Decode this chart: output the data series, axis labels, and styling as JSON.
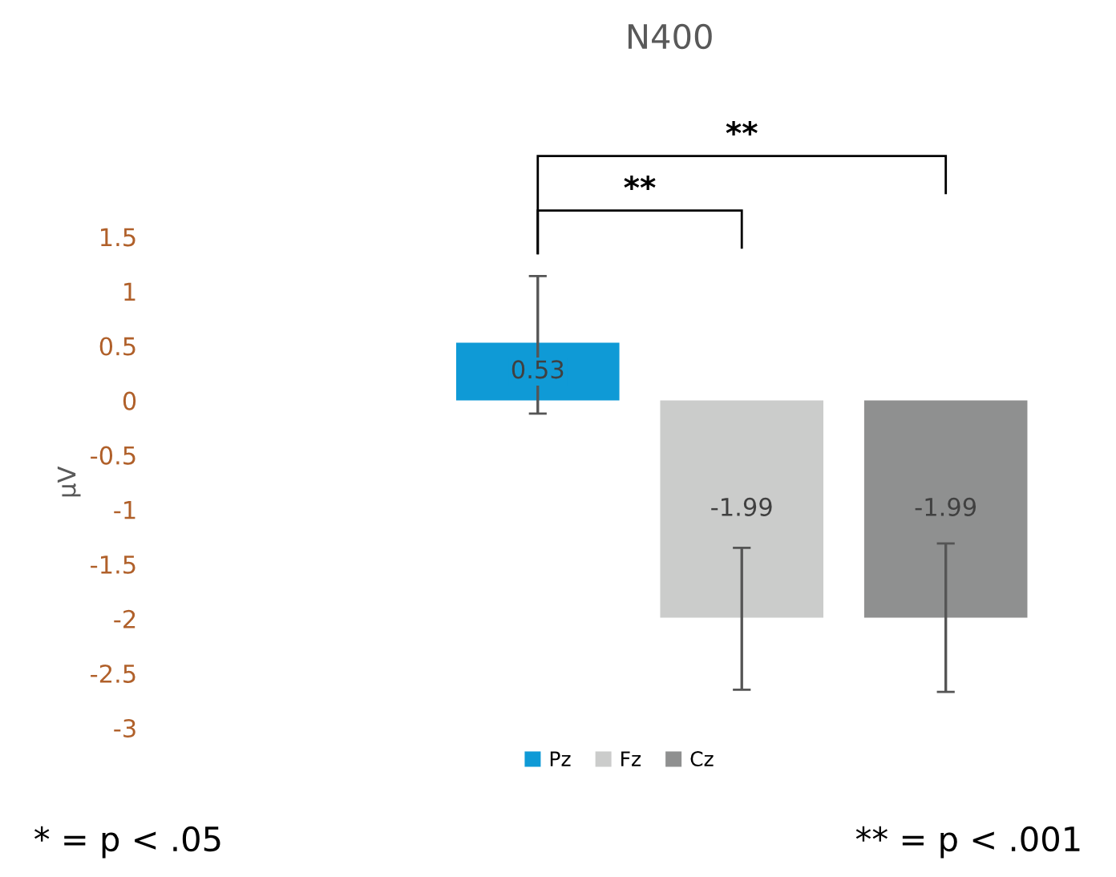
{
  "chart_data": {
    "type": "bar",
    "title": "N400",
    "ylabel": "µV",
    "categories": [
      null
    ],
    "series": [
      {
        "name": "Pz",
        "color": "#0f9ad6",
        "values": [
          0.53
        ],
        "errors": [
          [
            -0.12,
            1.14
          ]
        ]
      },
      {
        "name": "Fz",
        "color": "#cbcccb",
        "values": [
          -1.99
        ],
        "errors": [
          [
            -2.65,
            -1.35
          ]
        ]
      },
      {
        "name": "Cz",
        "color": "#8f9090",
        "values": [
          -1.99
        ],
        "errors": [
          [
            -2.67,
            -1.31
          ]
        ]
      }
    ],
    "ylim": [
      -3,
      1.5
    ],
    "yticks": [
      -3,
      -2.5,
      -2,
      -1.5,
      -1,
      -0.5,
      0,
      0.5,
      1,
      1.5
    ],
    "data_labels": true,
    "grid": false,
    "legend": "bottom",
    "annotations": [
      "**",
      "**",
      "* = p < .05",
      "** = p < .001"
    ]
  }
}
